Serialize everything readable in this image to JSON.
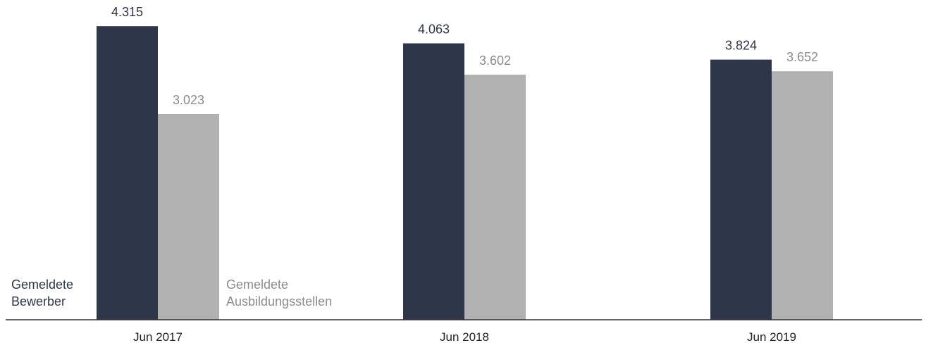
{
  "chart_data": {
    "type": "bar",
    "title": "",
    "xlabel": "",
    "ylabel": "",
    "categories": [
      "Jun 2017",
      "Jun 2018",
      "Jun 2019"
    ],
    "series": [
      {
        "name_lines": [
          "Gemeldete",
          "Bewerber"
        ],
        "values": [
          4315,
          4063,
          3824
        ],
        "value_labels": [
          "4.315",
          "4.063",
          "3.824"
        ],
        "color": "#2e364a",
        "label_color": "#2e364a"
      },
      {
        "name_lines": [
          "Gemeldete",
          "Ausbildungsstellen"
        ],
        "values": [
          3023,
          3602,
          3652
        ],
        "value_labels": [
          "3.023",
          "3.602",
          "3.652"
        ],
        "color": "#b1b1b1",
        "label_color": "#8c8c8c"
      }
    ],
    "ylim": [
      0,
      4700
    ],
    "grid": false,
    "legend": "inline-left-of-first-group"
  }
}
